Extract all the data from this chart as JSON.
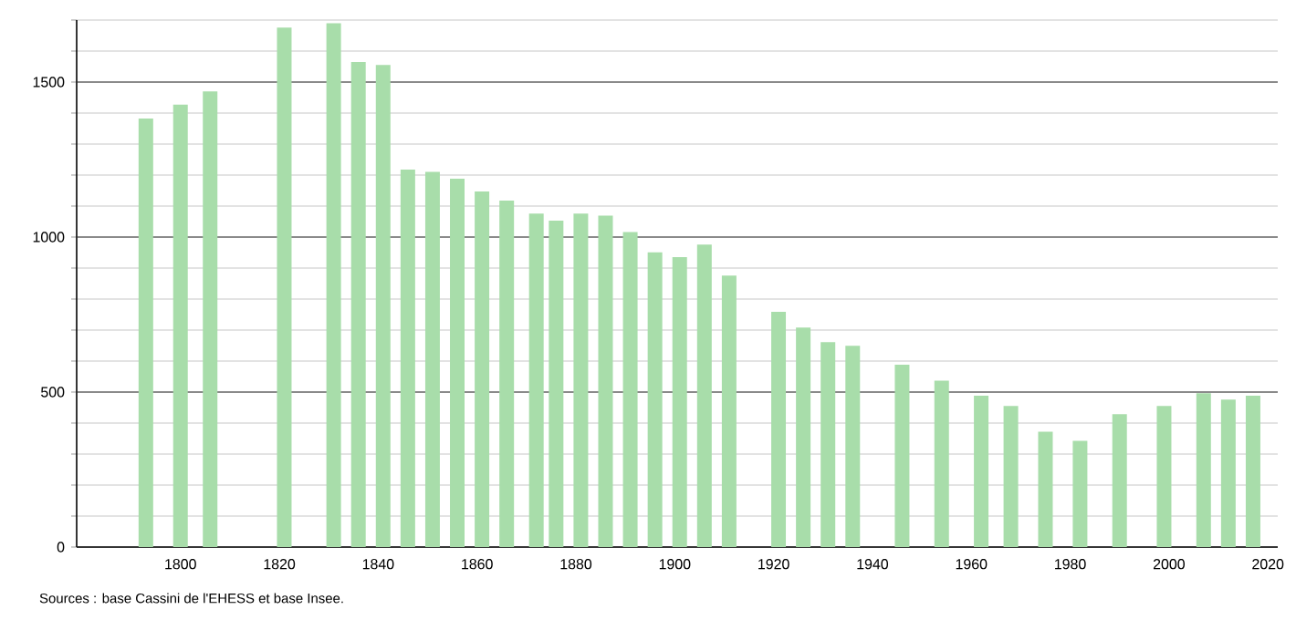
{
  "chart_data": {
    "type": "bar",
    "color": "#a8ddaa",
    "grid": "y",
    "x": [
      1793,
      1800,
      1806,
      1821,
      1831,
      1836,
      1841,
      1846,
      1851,
      1856,
      1861,
      1866,
      1872,
      1876,
      1881,
      1886,
      1891,
      1896,
      1901,
      1906,
      1911,
      1921,
      1926,
      1931,
      1936,
      1946,
      1954,
      1962,
      1968,
      1975,
      1982,
      1990,
      1999,
      2007,
      2012,
      2017
    ],
    "values": [
      1382,
      1427,
      1470,
      1676,
      1690,
      1565,
      1555,
      1218,
      1210,
      1188,
      1147,
      1118,
      1076,
      1053,
      1076,
      1069,
      1016,
      951,
      935,
      976,
      876,
      759,
      708,
      661,
      649,
      588,
      537,
      488,
      455,
      372,
      343,
      429,
      455,
      496,
      476,
      488
    ],
    "xlim": [
      1779,
      2022
    ],
    "ylim": [
      0,
      1700
    ],
    "xticks": [
      1800,
      1820,
      1840,
      1860,
      1880,
      1900,
      1920,
      1940,
      1960,
      1980,
      2000,
      2020
    ],
    "yticks": [
      0,
      {
        "value": 100,
        "label": null
      },
      {
        "value": 200,
        "label": null
      },
      {
        "value": 300,
        "label": null
      },
      {
        "value": 400,
        "label": null
      },
      500,
      {
        "value": 600,
        "label": null
      },
      {
        "value": 700,
        "label": null
      },
      {
        "value": 800,
        "label": null
      },
      {
        "value": 900,
        "label": null
      },
      1000,
      {
        "value": 1100,
        "label": null
      },
      {
        "value": 1200,
        "label": null
      },
      {
        "value": 1300,
        "label": null
      },
      {
        "value": 1400,
        "label": null
      },
      1500,
      {
        "value": 1600,
        "label": null
      },
      {
        "value": 1700,
        "label": null
      }
    ],
    "annotations": [
      "Sources : base Cassini de l'EHESS et base Insee."
    ]
  }
}
